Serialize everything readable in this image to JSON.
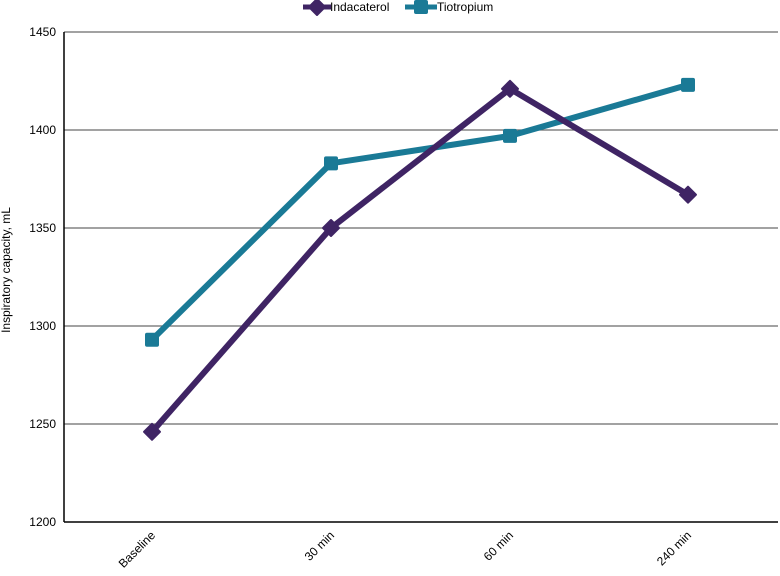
{
  "chart_data": {
    "type": "line",
    "title": "",
    "xlabel": "",
    "ylabel": "Inspiratory capacity, mL",
    "categories": [
      "Baseline",
      "30 min",
      "60 min",
      "240 min"
    ],
    "ylim": [
      1200,
      1450
    ],
    "yticks": [
      1200,
      1250,
      1300,
      1350,
      1400,
      1450
    ],
    "grid": true,
    "legend_position": "top-center",
    "series": [
      {
        "name": "Indacaterol",
        "values": [
          1246,
          1350,
          1421,
          1367
        ],
        "color": "#3f2464",
        "marker": "diamond"
      },
      {
        "name": "Tiotropium",
        "values": [
          1293,
          1383,
          1397,
          1423
        ],
        "color": "#1a7a96",
        "marker": "square"
      }
    ]
  }
}
